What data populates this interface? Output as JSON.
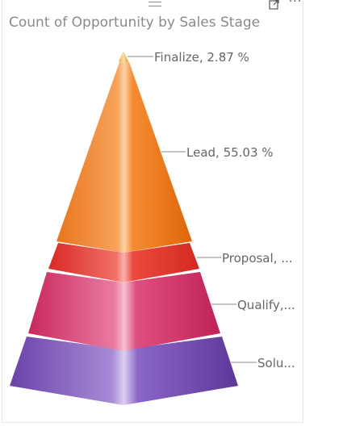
{
  "visual": {
    "title": "Count of Opportunity by Sales Stage",
    "more_options": "···"
  },
  "chart_data": {
    "type": "pyramid",
    "title": "Count of Opportunity by Sales Stage",
    "series": [
      {
        "category": "Finalize",
        "percent": 2.87,
        "label": "Finalize, 2.87 %",
        "color": "#f5b860"
      },
      {
        "category": "Lead",
        "percent": 55.03,
        "label": "Lead, 55.03 %",
        "color": "#f07b1c"
      },
      {
        "category": "Proposal",
        "percent": null,
        "label": "Proposal, ...",
        "color": "#e8342c"
      },
      {
        "category": "Qualify",
        "percent": null,
        "label": "Qualify,...",
        "color": "#d7356e"
      },
      {
        "category": "Solution",
        "percent": null,
        "label": "Solu...",
        "color": "#7b4fb8"
      }
    ]
  }
}
